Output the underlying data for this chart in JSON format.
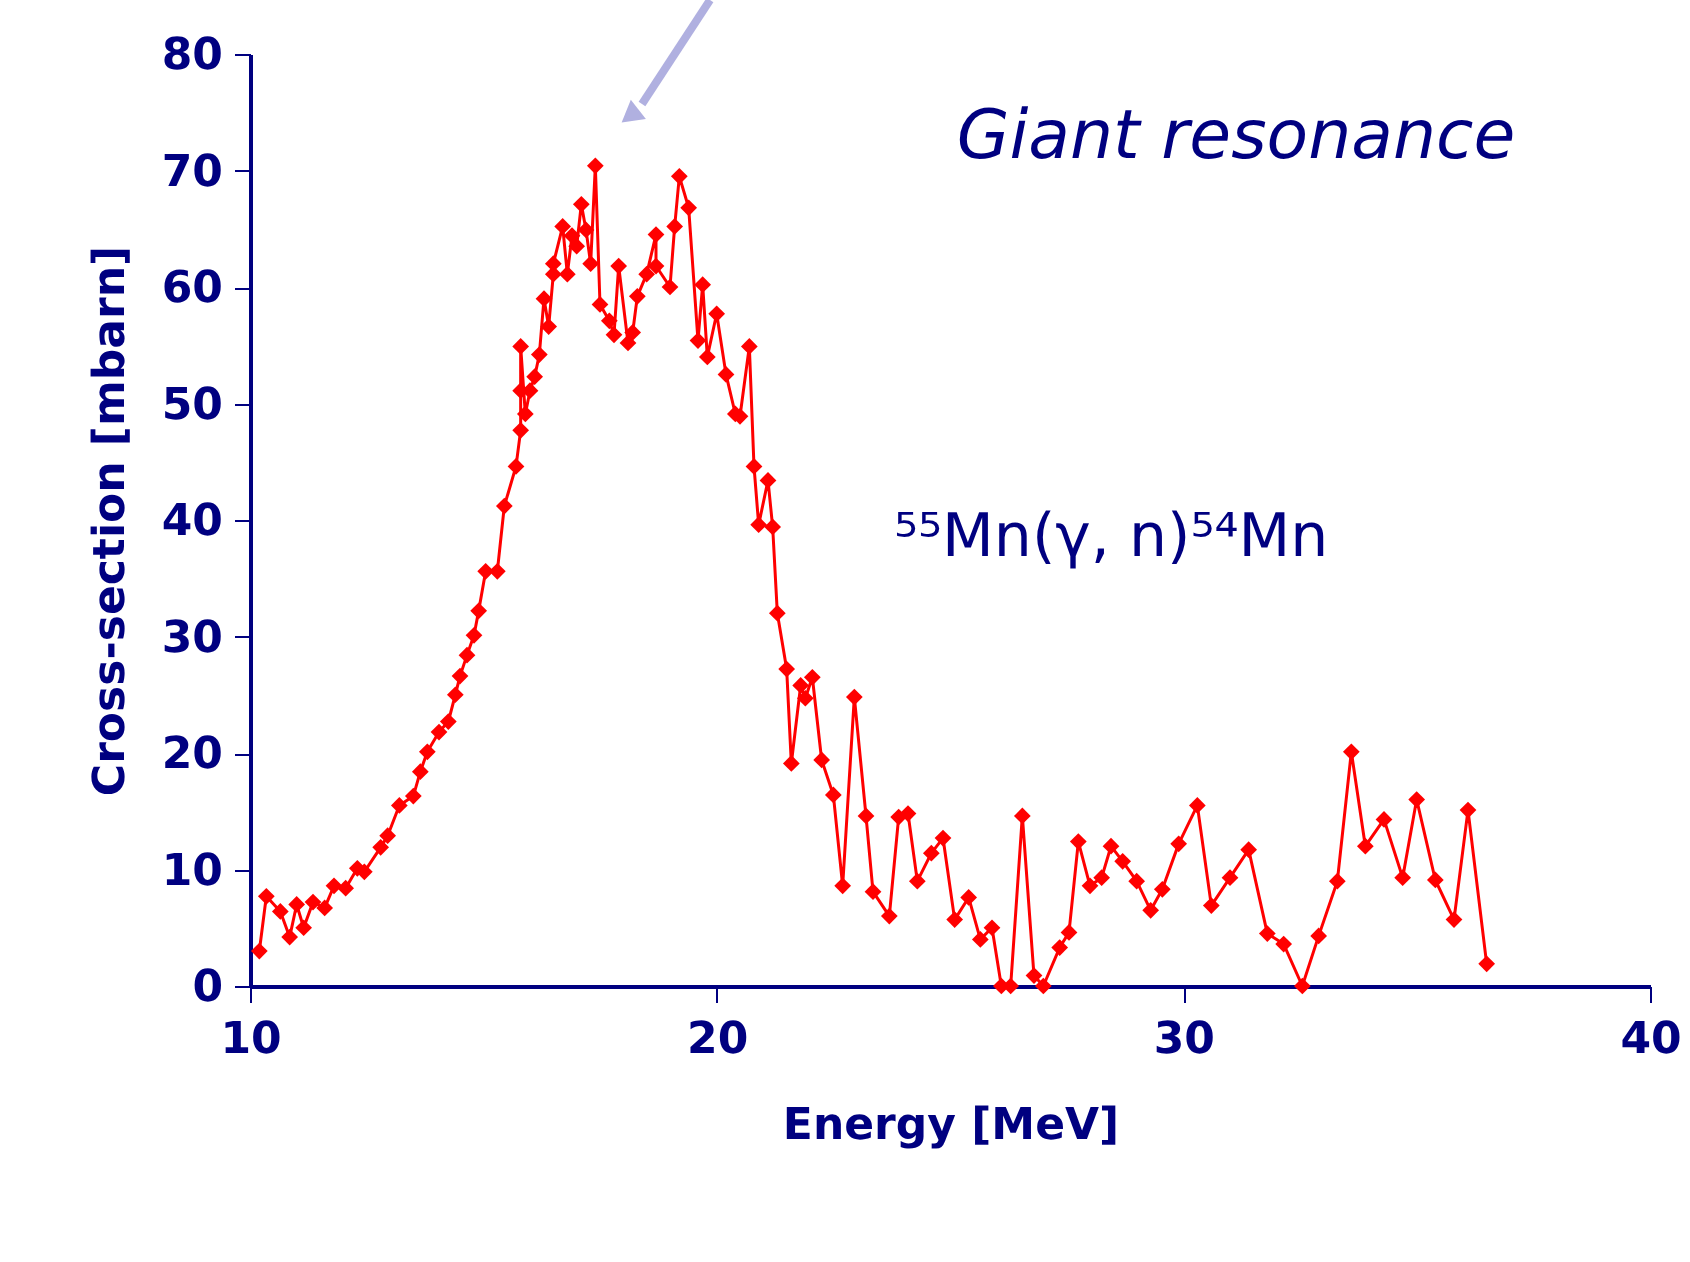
{
  "chart_data": {
    "type": "line",
    "xlabel": "Energy [MeV]",
    "ylabel": "Cross-section [mbarn]",
    "annotations": [
      "Giant resonance",
      "⁵⁵Mn(γ, n)⁵⁴Mn"
    ],
    "xlim": [
      10,
      40
    ],
    "xticks": [
      10,
      20,
      30,
      40
    ],
    "ylim": [
      0,
      80
    ],
    "yticks": [
      0,
      10,
      20,
      30,
      40,
      50,
      60,
      70,
      80
    ],
    "grid": false,
    "legend": false,
    "marker": "diamond",
    "line_style": "solid",
    "series": [
      {
        "color": "#ff0000",
        "x": [
          10.2,
          10.35,
          10.65,
          10.85,
          11.0,
          11.15,
          11.35,
          11.6,
          11.8,
          12.05,
          12.3,
          12.45,
          12.8,
          12.95,
          13.2,
          13.5,
          13.65,
          13.8,
          14.05,
          14.25,
          14.4,
          14.5,
          14.65,
          14.8,
          14.9,
          15.05,
          15.3,
          15.45,
          15.7,
          15.8,
          15.8,
          15.8,
          15.9,
          16.0,
          16.1,
          16.2,
          16.3,
          16.4,
          16.5,
          16.5,
          16.7,
          16.8,
          16.9,
          17.0,
          17.1,
          17.2,
          17.3,
          17.4,
          17.5,
          17.7,
          17.8,
          17.9,
          18.1,
          18.2,
          18.3,
          18.5,
          18.7,
          18.7,
          19.0,
          19.1,
          19.2,
          19.4,
          19.6,
          19.7,
          19.8,
          20.0,
          20.2,
          20.4,
          20.5,
          20.7,
          20.8,
          20.9,
          21.1,
          21.2,
          21.3,
          21.5,
          21.6,
          21.8,
          21.9,
          22.05,
          22.25,
          22.5,
          22.7,
          22.95,
          23.2,
          23.35,
          23.7,
          23.9,
          24.1,
          24.3,
          24.6,
          24.85,
          25.1,
          25.4,
          25.65,
          25.9,
          26.1,
          26.3,
          26.55,
          26.8,
          27.0,
          27.35,
          27.55,
          27.75,
          28.0,
          28.25,
          28.45,
          28.7,
          29.0,
          29.3,
          29.55,
          29.9,
          30.3,
          30.6,
          31.0,
          31.4,
          31.8,
          32.15,
          32.55,
          32.9,
          33.3,
          33.6,
          33.9,
          34.3,
          34.7,
          35.0,
          35.4,
          35.8,
          36.1,
          36.5
        ],
        "values": [
          3,
          7.7,
          6.4,
          4.2,
          7,
          5,
          7.2,
          6.7,
          8.6,
          8.4,
          10.1,
          9.8,
          11.9,
          12.9,
          15.5,
          16.3,
          18.4,
          20.1,
          21.8,
          22.7,
          25,
          26.6,
          28.4,
          30.1,
          32.2,
          35.6,
          35.6,
          41.2,
          44.6,
          47.7,
          51.1,
          54.9,
          49.1,
          51.1,
          52.3,
          54.2,
          59,
          56.6,
          61.1,
          62,
          65.2,
          61.1,
          64.4,
          63.5,
          67.1,
          64.9,
          62,
          70.4,
          58.5,
          57.1,
          55.9,
          61.8,
          55.2,
          56.1,
          59.2,
          61.1,
          64.5,
          61.8,
          60,
          65.2,
          69.5,
          66.8,
          55.4,
          60.2,
          54,
          57.7,
          52.5,
          49.1,
          48.9,
          54.9,
          44.6,
          39.6,
          43.4,
          39.4,
          32,
          27.2,
          19.1,
          25.8,
          24.7,
          26.5,
          19.4,
          16.4,
          8.6,
          24.8,
          14.6,
          8.1,
          6,
          14.5,
          14.8,
          9,
          11.4,
          12.7,
          5.7,
          7.6,
          4,
          5,
          0,
          0,
          14.6,
          0.9,
          0,
          3.3,
          4.6,
          12.4,
          8.6,
          9.3,
          12,
          10.7,
          9,
          6.5,
          8.3,
          12.2,
          15.5,
          6.9,
          9.3,
          11.7,
          4.5,
          3.6,
          0,
          4.3,
          9,
          20.1,
          12,
          14.3,
          9.3,
          16,
          9.1,
          5.7,
          15.1,
          1.9
        ]
      }
    ]
  }
}
